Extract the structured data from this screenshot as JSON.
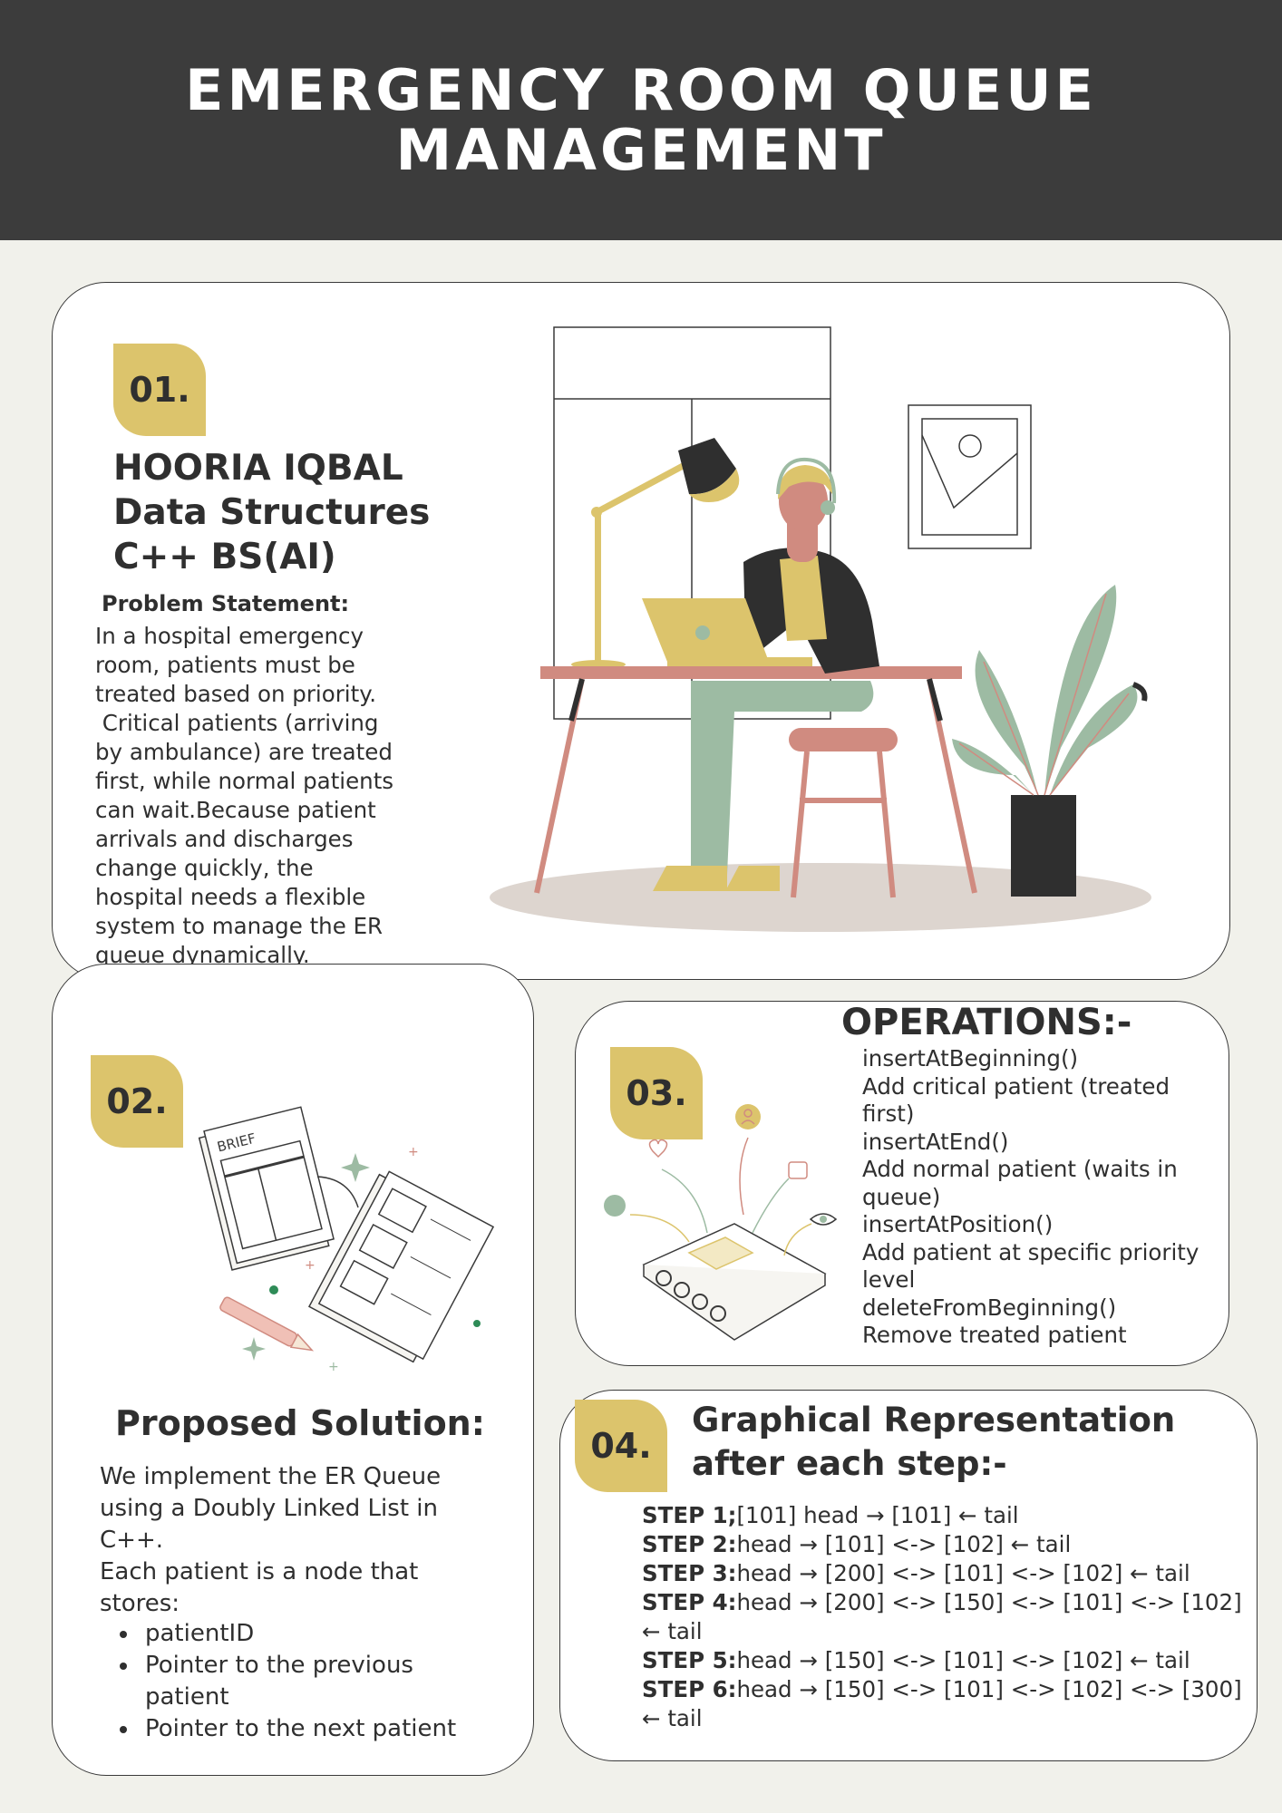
{
  "header": {
    "title": "EMERGENCY ROOM QUEUE MANAGEMENT"
  },
  "colors": {
    "header_bg": "#3c3c3c",
    "badge": "#dcc46c",
    "page_bg": "#f1f1eb",
    "card_bg": "#ffffff",
    "sage": "#9dbba3",
    "rose": "#d08b80"
  },
  "section1": {
    "badge": "01.",
    "author_lines": [
      "HOORIA IQBAL",
      "Data Structures",
      "C++ BS(AI)"
    ],
    "problem_label": "Problem Statement:",
    "problem_lines": [
      "In a hospital emergency",
      "room, patients must be",
      "treated based on priority.",
      " Critical patients (arriving",
      "by ambulance) are treated",
      "first, while normal patients",
      "can wait.Because patient",
      "arrivals and discharges",
      "change quickly, the",
      "hospital needs a flexible",
      "system to manage the ER",
      "queue dynamically."
    ]
  },
  "section2": {
    "badge": "02.",
    "title": "Proposed Solution:",
    "intro_lines": [
      "We implement the ER Queue",
      "using a Doubly Linked List in",
      "C++.",
      "Each patient is a node that",
      "stores:"
    ],
    "bullets": [
      "patientID",
      "Pointer to the previous",
      "patient",
      "Pointer to the next patient"
    ],
    "illustration_label": "BRIEF"
  },
  "section3": {
    "badge": "03.",
    "title": "OPERATIONS:-",
    "lines": [
      "insertAtBeginning()",
      "Add critical patient (treated",
      "first)",
      "insertAtEnd()",
      "Add normal patient (waits in",
      "queue)",
      "insertAtPosition()",
      "Add patient at specific priority",
      "level",
      "deleteFromBeginning()",
      "Remove treated patient"
    ]
  },
  "section4": {
    "badge": "04.",
    "title_lines": [
      "Graphical Representation",
      "after each step:-"
    ],
    "steps": [
      {
        "label": "STEP 1;",
        "text": "[101] head → [101] ← tail"
      },
      {
        "label": "STEP 2:",
        "text": "head → [101] <-> [102] ← tail"
      },
      {
        "label": "STEP 3:",
        "text": "head → [200] <-> [101] <-> [102] ← tail"
      },
      {
        "label": "STEP 4:",
        "text": "head → [200] <-> [150] <-> [101] <-> [102]"
      },
      {
        "label": "",
        "text": "← tail"
      },
      {
        "label": "STEP 5:",
        "text": "head → [150] <-> [101] <-> [102] ← tail"
      },
      {
        "label": "STEP 6:",
        "text": "head → [150] <-> [101] <-> [102] <-> [300]"
      },
      {
        "label": "",
        "text": "← tail"
      }
    ]
  }
}
